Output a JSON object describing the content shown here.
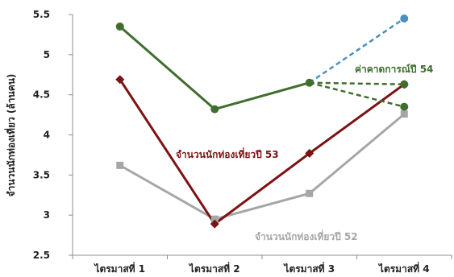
{
  "chart_data": {
    "type": "line",
    "categories": [
      "ไตรมาสที่ 1",
      "ไตรมาสที่ 2",
      "ไตรมาสที่ 3",
      "ไตรมาสที่ 4"
    ],
    "ylabel": "จำนวนนักท่องเที่ยว (ล้านคน)",
    "ylim": [
      2.5,
      5.5
    ],
    "yticks": [
      "2.5",
      "3",
      "3.5",
      "4",
      "4.5",
      "5",
      "5.5"
    ],
    "grid": false,
    "series": [
      {
        "name": "จำนวนนักท่องเที่ยวปี 52",
        "color": "#a6a6a6",
        "marker": "square",
        "dash": "solid",
        "values": [
          3.62,
          2.95,
          3.27,
          4.26
        ]
      },
      {
        "name": "จำนวนนักท่องเที่ยวปี 53",
        "color": "#7b1214",
        "marker": "diamond",
        "dash": "solid",
        "values": [
          4.69,
          2.89,
          3.77,
          4.63
        ]
      },
      {
        "name": "ค่าคาดการณ์ปี 54",
        "color": "#3f6e2e",
        "marker": "circle",
        "dash": "solid",
        "values": [
          5.35,
          4.32,
          4.65,
          null
        ]
      }
    ],
    "forecast_branches": [
      {
        "color": "#4a90bf",
        "marker": "circle",
        "dash": "dashed",
        "from": 4.65,
        "to": 5.45
      },
      {
        "color": "#3f6e2e",
        "marker": "circle",
        "dash": "dashed",
        "from": 4.65,
        "to": 4.63
      },
      {
        "color": "#3f6e2e",
        "marker": "circle",
        "dash": "dashed",
        "from": 4.65,
        "to": 4.35
      }
    ],
    "annotations": [
      {
        "text": "ค่าคาดการณ์ปี 54",
        "color": "#3f6e2e"
      },
      {
        "text": "จำนวนนักท่องเที่ยวปี 53",
        "color": "#7b1214"
      },
      {
        "text": "จำนวนนักท่องเที่ยวปี 52",
        "color": "#a6a6a6"
      }
    ]
  }
}
